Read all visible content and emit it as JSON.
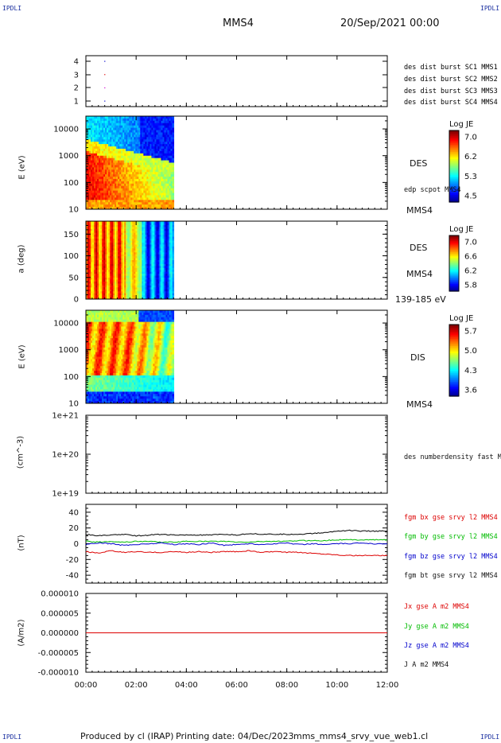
{
  "corners": {
    "tl": "IPDLI",
    "tr": "IPDLI",
    "bl": "IPDLI",
    "br": "IPDLI"
  },
  "header": {
    "spacecraft": "MMS4",
    "datetime": "20/Sep/2021 00:00"
  },
  "footer": {
    "produced": "Produced by cl (IRAP)",
    "printed": "Printing date: 04/Dec/2023",
    "file": "mms_mms4_srvy_vue_web1.cl"
  },
  "colors": {
    "mms1": "#0000cc",
    "mms2": "#cc00cc",
    "mms3": "#dd0000",
    "mms4": "#00bb00",
    "bx": "#dd0000",
    "by": "#00bb00",
    "bz": "#0000cc",
    "bt": "#000000"
  },
  "chart_data": [
    {
      "type": "scatter",
      "id": "burst",
      "yticks": [
        "4",
        "3",
        "2",
        "1"
      ],
      "legend": [
        {
          "name": "des dist burst SC1 MMS1",
          "color": "#0000cc"
        },
        {
          "name": "des dist burst SC2 MMS2",
          "color": "#cc00cc"
        },
        {
          "name": "des dist burst SC3 MMS3",
          "color": "#dd0000"
        },
        {
          "name": "des dist burst SC4 MMS4",
          "color": "#00bb00"
        }
      ],
      "points": [
        {
          "x": 0.75,
          "y": 4
        },
        {
          "x": 0.75,
          "y": 3
        },
        {
          "x": 0.75,
          "y": 2
        },
        {
          "x": 0.75,
          "y": 1
        }
      ]
    },
    {
      "type": "heatmap",
      "id": "des_energy",
      "ylabel": "E (eV)",
      "yticks": [
        "10000",
        "1000",
        "100",
        "10"
      ],
      "yscale": "log",
      "ylim": [
        10,
        30000
      ],
      "x_extent_hours": [
        0,
        3.5
      ],
      "colorbar": {
        "title": "Log JE",
        "ticks": [
          "7.0",
          "6.2",
          "5.3",
          "4.5"
        ]
      },
      "labels": {
        "species": "DES",
        "extra": "edp scpot MMS4",
        "sc": "MMS4"
      }
    },
    {
      "type": "heatmap",
      "id": "des_pitch",
      "ylabel": "a (deg)",
      "yticks": [
        "150",
        "100",
        "50",
        "0"
      ],
      "ylim": [
        0,
        180
      ],
      "x_extent_hours": [
        0,
        3.5
      ],
      "colorbar": {
        "title": "Log JE",
        "ticks": [
          "7.0",
          "6.6",
          "6.2",
          "5.8"
        ]
      },
      "labels": {
        "species": "DES",
        "sc": "MMS4",
        "range": "139-185 eV"
      }
    },
    {
      "type": "heatmap",
      "id": "dis_energy",
      "ylabel": "E (eV)",
      "yticks": [
        "10000",
        "1000",
        "100",
        "10"
      ],
      "yscale": "log",
      "ylim": [
        10,
        30000
      ],
      "x_extent_hours": [
        0,
        3.5
      ],
      "colorbar": {
        "title": "Log JE",
        "ticks": [
          "5.7",
          "5.0",
          "4.3",
          "3.6"
        ]
      },
      "labels": {
        "species": "DIS",
        "sc": "MMS4"
      }
    },
    {
      "type": "line",
      "id": "density",
      "ylabel": "(cm^-3)",
      "yticks": [
        "1e+21",
        "1e+20",
        "1e+19"
      ],
      "yscale": "log",
      "series": [
        {
          "name": "des numberdensity fast M",
          "values": []
        }
      ]
    },
    {
      "type": "line",
      "id": "bfield",
      "ylabel": "(nT)",
      "yticks": [
        "40",
        "20",
        "0",
        "-20",
        "-40"
      ],
      "ylim": [
        -50,
        50
      ],
      "x": [
        0,
        0.5,
        1,
        1.5,
        2,
        2.5,
        3,
        3.5,
        4,
        4.5,
        5,
        5.5,
        6,
        6.5,
        7,
        7.5,
        8,
        8.5,
        9,
        9.5,
        10,
        10.5,
        11,
        11.5,
        12
      ],
      "series": [
        {
          "name": "fgm bx gse srvy l2 MMS4",
          "color": "#dd0000",
          "values": [
            -10,
            -12,
            -9,
            -11,
            -10,
            -11,
            -11,
            -10,
            -11,
            -10,
            -11,
            -10,
            -10,
            -9,
            -11,
            -10,
            -11,
            -11,
            -12,
            -13,
            -14,
            -15,
            -15,
            -15,
            -15
          ]
        },
        {
          "name": "fgm by gse srvy l2 MMS4",
          "color": "#00bb00",
          "values": [
            3,
            2,
            3,
            2,
            3,
            3,
            2,
            2,
            3,
            3,
            3,
            3,
            2,
            2,
            3,
            3,
            3,
            4,
            4,
            4,
            5,
            5,
            5,
            5,
            5
          ]
        },
        {
          "name": "fgm bz gse srvy l2 MMS4",
          "color": "#0000cc",
          "values": [
            -1,
            1,
            0,
            -2,
            -1,
            0,
            1,
            -1,
            0,
            -1,
            1,
            -2,
            -1,
            0,
            -1,
            0,
            1,
            -1,
            0,
            -1,
            0,
            0,
            1,
            0,
            0
          ]
        },
        {
          "name": "fgm bt gse srvy l2 MMS4",
          "color": "#000000",
          "values": [
            12,
            10,
            11,
            12,
            10,
            11,
            12,
            11,
            11,
            11,
            11,
            12,
            11,
            13,
            12,
            12,
            12,
            12,
            13,
            14,
            16,
            17,
            16,
            16,
            16
          ]
        }
      ]
    },
    {
      "type": "line",
      "id": "current",
      "ylabel": "(A/m2)",
      "yticks": [
        "0.000010",
        "0.000005",
        "0.000000",
        "-0.000005",
        "-0.000010"
      ],
      "ylim": [
        -1e-05,
        1e-05
      ],
      "x": [
        0,
        12
      ],
      "series": [
        {
          "name": "Jx gse A m2 MMS4",
          "color": "#dd0000",
          "values": [
            0,
            0
          ]
        },
        {
          "name": "Jy gse A m2 MMS4",
          "color": "#00bb00",
          "values": [
            0,
            0
          ]
        },
        {
          "name": "Jz gse A m2 MMS4",
          "color": "#0000cc",
          "values": [
            0,
            0
          ]
        },
        {
          "name": "J A m2 MMS4",
          "color": "#000000",
          "values": [
            0,
            0
          ]
        }
      ]
    }
  ],
  "xaxis": {
    "ticks": [
      "00:00",
      "02:00",
      "04:00",
      "06:00",
      "08:00",
      "10:00",
      "12:00"
    ],
    "range_hours": [
      0,
      12
    ]
  }
}
